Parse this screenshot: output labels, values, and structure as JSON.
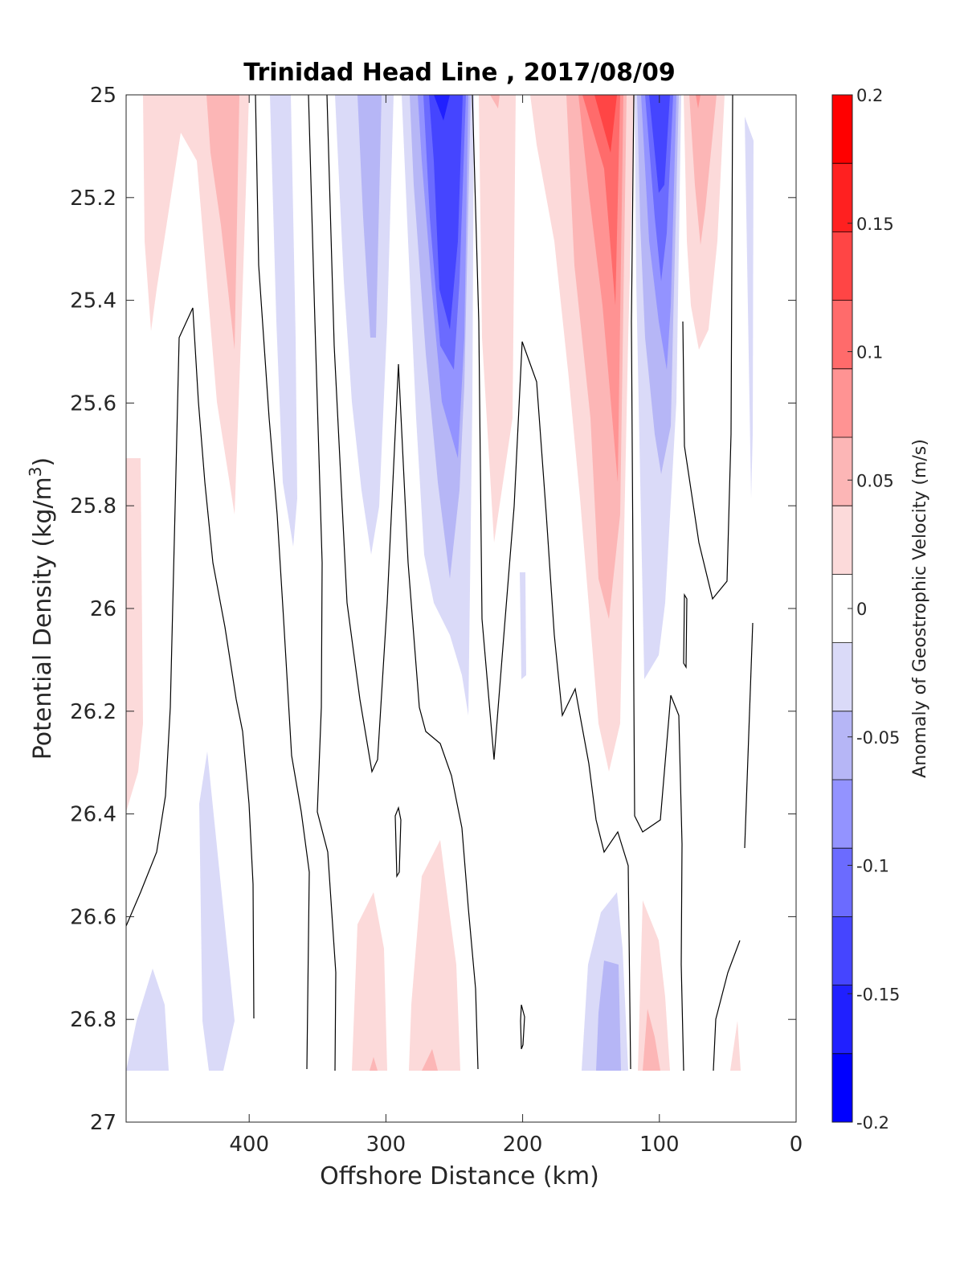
{
  "chart_data": {
    "type": "heatmap",
    "plot_kind": "filled contour section",
    "title": "Trinidad Head Line , 2017/08/09",
    "xlabel": "Offshore Distance (km)",
    "ylabel_main": "Potential Density (kg/m",
    "ylabel_sup": "3",
    "ylabel_tail": ")",
    "colorbar_label": "Anomaly of Geostrophic Velocity (m/s)",
    "xlim": [
      490,
      0
    ],
    "x_reversed": true,
    "ylim": [
      25,
      27
    ],
    "y_reversed": true,
    "xticks": [
      400,
      300,
      200,
      100,
      0
    ],
    "xtick_labels": [
      "400",
      "300",
      "200",
      "100",
      "0"
    ],
    "yticks": [
      25,
      25.2,
      25.4,
      25.6,
      25.8,
      26,
      26.2,
      26.4,
      26.6,
      26.8,
      27
    ],
    "ytick_labels": [
      "25",
      "25.2",
      "25.4",
      "25.6",
      "25.8",
      "26",
      "26.2",
      "26.4",
      "26.6",
      "26.8",
      "27"
    ],
    "clim": [
      -0.2,
      0.2
    ],
    "colorbar_ticks": [
      0.2,
      0.15,
      0.1,
      0.05,
      0,
      -0.05,
      -0.1,
      -0.15,
      -0.2
    ],
    "colorbar_tick_labels": [
      "0.2",
      "0.15",
      "0.1",
      "0.05",
      "0",
      "-0.05",
      "-0.1",
      "-0.15",
      "-0.2"
    ],
    "level_colors": [
      "#0000ff",
      "#2020ff",
      "#4545ff",
      "#6b6bff",
      "#9393ff",
      "#b6b6f6",
      "#dadaf8",
      "#ffffff",
      "#fcdada",
      "#fcb6b6",
      "#ff9393",
      "#ff6b6b",
      "#ff4545",
      "#ff2020",
      "#ff0000"
    ],
    "data_depth_limit": 26.9,
    "grid": false,
    "features": [
      {
        "sign": "positive",
        "x_range": [
          480,
          415
        ],
        "density_range": [
          25,
          25.8
        ],
        "peak": 0.08
      },
      {
        "sign": "negative",
        "x_range": [
          385,
          365
        ],
        "density_range": [
          25,
          25.8
        ],
        "peak": -0.04
      },
      {
        "sign": "negative",
        "x_range": [
          330,
          295
        ],
        "density_range": [
          25,
          25.9
        ],
        "peak": -0.07
      },
      {
        "sign": "negative",
        "x_range": [
          285,
          235
        ],
        "density_range": [
          25,
          26.2
        ],
        "peak": -0.17
      },
      {
        "sign": "positive",
        "x_range": [
          230,
          210
        ],
        "density_range": [
          25,
          25.85
        ],
        "peak": 0.05
      },
      {
        "sign": "positive",
        "x_range": [
          185,
          125
        ],
        "density_range": [
          25,
          26.3
        ],
        "peak": 0.14
      },
      {
        "sign": "negative",
        "x_range": [
          117,
          85
        ],
        "density_range": [
          25,
          26.1
        ],
        "peak": -0.16
      },
      {
        "sign": "positive",
        "x_range": [
          78,
          52
        ],
        "density_range": [
          25,
          25.7
        ],
        "peak": 0.08
      },
      {
        "sign": "positive",
        "x_range": [
          490,
          478
        ],
        "density_range": [
          25.7,
          26.4
        ],
        "peak": 0.04
      },
      {
        "sign": "negative",
        "x_range": [
          478,
          455
        ],
        "density_range": [
          26.7,
          26.9
        ],
        "peak": -0.04
      },
      {
        "sign": "negative",
        "x_range": [
          440,
          420
        ],
        "density_range": [
          26.3,
          26.9
        ],
        "peak": -0.04
      },
      {
        "sign": "positive",
        "x_range": [
          320,
          300
        ],
        "density_range": [
          26.6,
          26.9
        ],
        "peak": 0.04
      },
      {
        "sign": "positive",
        "x_range": [
          282,
          250
        ],
        "density_range": [
          26.45,
          26.9
        ],
        "peak": 0.07
      },
      {
        "sign": "negative",
        "x_range": [
          155,
          125
        ],
        "density_range": [
          26.6,
          26.9
        ],
        "peak": -0.08
      },
      {
        "sign": "positive",
        "x_range": [
          110,
          95
        ],
        "density_range": [
          26.6,
          26.9
        ],
        "peak": 0.06
      }
    ]
  }
}
